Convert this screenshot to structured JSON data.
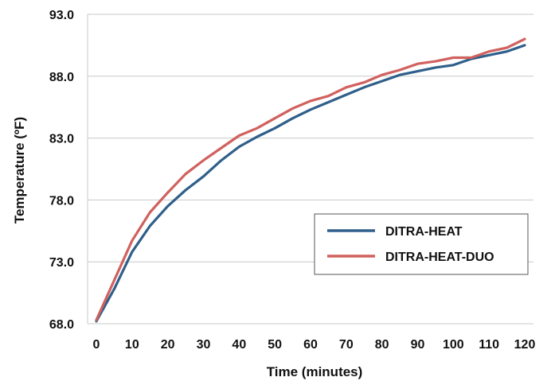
{
  "chart_data": {
    "type": "line",
    "title": "",
    "xlabel": "Time (minutes)",
    "ylabel": "Temperature (ºF)",
    "xlim": [
      0,
      120
    ],
    "ylim": [
      68,
      93
    ],
    "x_ticks": [
      "0",
      "10",
      "20",
      "30",
      "40",
      "50",
      "60",
      "70",
      "80",
      "90",
      "100",
      "110",
      "120"
    ],
    "y_ticks": [
      "68.0",
      "73.0",
      "78.0",
      "83.0",
      "88.0",
      "93.0"
    ],
    "grid": "horizontal",
    "legend_position": "right",
    "x": [
      0,
      5,
      10,
      15,
      20,
      25,
      30,
      35,
      40,
      45,
      50,
      55,
      60,
      65,
      70,
      75,
      80,
      85,
      90,
      95,
      100,
      105,
      110,
      115,
      120
    ],
    "series": [
      {
        "name": "DITRA-HEAT",
        "color": "#2f5f8a",
        "values": [
          68.2,
          70.8,
          73.8,
          75.9,
          77.5,
          78.8,
          79.9,
          81.2,
          82.3,
          83.1,
          83.8,
          84.6,
          85.3,
          85.9,
          86.5,
          87.1,
          87.6,
          88.1,
          88.4,
          88.7,
          88.9,
          89.4,
          89.7,
          90.0,
          90.5
        ]
      },
      {
        "name": "DITRA-HEAT-DUO",
        "color": "#d0615e",
        "values": [
          68.3,
          71.5,
          74.7,
          77.0,
          78.6,
          80.1,
          81.2,
          82.2,
          83.2,
          83.8,
          84.6,
          85.4,
          86.0,
          86.4,
          87.1,
          87.5,
          88.1,
          88.5,
          89.0,
          89.2,
          89.5,
          89.5,
          90.0,
          90.3,
          91.0
        ]
      }
    ]
  }
}
